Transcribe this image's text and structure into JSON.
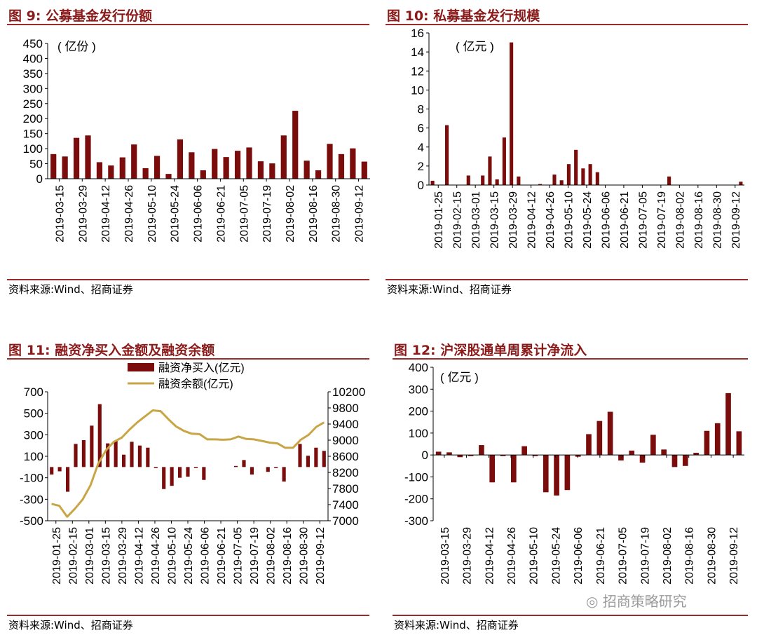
{
  "panels": {
    "p1": {
      "title": "图 9:  公募基金发行份额",
      "source": "资料来源:Wind、招商证券"
    },
    "p2": {
      "title": "图 10:  私募基金发行规模",
      "source": "资料来源:Wind、招商证券"
    },
    "p3": {
      "title": "图 11:  融资净买入金额及融资余额",
      "source": "资料来源:Wind、招商证券"
    },
    "p4": {
      "title": "图 12:  沪深股通单周累计净流入",
      "source": "资料来源:Wind、招商证券"
    }
  },
  "watermark": "招商策略研究",
  "colors": {
    "bar": "#7b0c0c",
    "line": "#c8a545",
    "rule": "#9b2a2a",
    "title": "#8b1a1a"
  },
  "chart_data": [
    {
      "id": "fig9",
      "type": "bar",
      "unit_label": "( 亿份 )",
      "ylim": [
        0,
        450
      ],
      "yticks": [
        0,
        50,
        100,
        150,
        200,
        250,
        300,
        350,
        400,
        450
      ],
      "xtick_labels": [
        "2019-03-15",
        "2019-03-29",
        "2019-04-12",
        "2019-04-26",
        "2019-05-10",
        "2019-05-24",
        "2019-06-06",
        "2019-06-21",
        "2019-07-05",
        "2019-07-19",
        "2019-08-02",
        "2019-08-16",
        "2019-08-30",
        "2019-09-12"
      ],
      "values": [
        82,
        74,
        136,
        144,
        55,
        44,
        71,
        114,
        35,
        76,
        16,
        131,
        88,
        28,
        99,
        72,
        93,
        104,
        58,
        51,
        144,
        226,
        60,
        28,
        116,
        82,
        101,
        57
      ]
    },
    {
      "id": "fig10",
      "type": "bar",
      "unit_label": "( 亿元 )",
      "ylim": [
        0,
        16
      ],
      "yticks": [
        0,
        2,
        4,
        6,
        8,
        10,
        12,
        14,
        16
      ],
      "xtick_labels": [
        "2019-01-25",
        "2019-02-15",
        "2019-03-01",
        "2019-03-15",
        "2019-03-29",
        "2019-04-12",
        "2019-04-26",
        "2019-05-10",
        "2019-05-24",
        "2019-06-06",
        "2019-06-21",
        "2019-07-05",
        "2019-07-19",
        "2019-08-02",
        "2019-08-16",
        "2019-08-30",
        "2019-09-12"
      ],
      "values": [
        0.45,
        0,
        6.3,
        0,
        0,
        1,
        0,
        1,
        3,
        0.6,
        5,
        15,
        0.9,
        0,
        0,
        0.1,
        0,
        1.1,
        0.5,
        2.2,
        3.7,
        1.75,
        2.2,
        1.35,
        0,
        0,
        0,
        0,
        0,
        0,
        0,
        0,
        0,
        0.9,
        0,
        0,
        0,
        0,
        0,
        0,
        0,
        0,
        0,
        0.35
      ]
    },
    {
      "id": "fig11",
      "type": "bar+line",
      "legend": [
        "融资净买入(亿元)",
        "融资余额(亿元)"
      ],
      "ylim_left": [
        -500,
        700
      ],
      "yticks_left": [
        -500,
        -300,
        -100,
        100,
        300,
        500,
        700
      ],
      "ylim_right": [
        7000,
        10200
      ],
      "yticks_right": [
        7000,
        7400,
        7800,
        8200,
        8600,
        9000,
        9400,
        9800,
        10200
      ],
      "xtick_labels": [
        "2019-01-25",
        "2019-02-15",
        "2019-03-01",
        "2019-03-15",
        "2019-03-29",
        "2019-04-12",
        "2019-04-26",
        "2019-05-10",
        "2019-05-24",
        "2019-06-06",
        "2019-06-21",
        "2019-07-05",
        "2019-07-19",
        "2019-08-02",
        "2019-08-16",
        "2019-08-30",
        "2019-09-12"
      ],
      "bar_values": [
        -70,
        -40,
        -230,
        215,
        250,
        385,
        585,
        220,
        245,
        115,
        235,
        200,
        180,
        -10,
        -205,
        -175,
        -100,
        -90,
        -10,
        -120,
        0,
        0,
        0,
        10,
        65,
        -70,
        0,
        -45,
        -10,
        -135,
        0,
        215,
        105,
        180,
        150
      ],
      "line_values": [
        7420,
        7370,
        7100,
        7300,
        7530,
        7880,
        8420,
        8750,
        8960,
        9060,
        9260,
        9440,
        9590,
        9740,
        9720,
        9520,
        9340,
        9230,
        9160,
        9150,
        9020,
        9020,
        9010,
        9020,
        9090,
        9030,
        9020,
        8980,
        8940,
        8920,
        8810,
        8810,
        9010,
        9130,
        9330,
        9440
      ]
    },
    {
      "id": "fig12",
      "type": "bar",
      "unit_label": "( 亿元 )",
      "ylim": [
        -300,
        400
      ],
      "yticks": [
        -300,
        -200,
        -100,
        0,
        100,
        200,
        300,
        400
      ],
      "xtick_labels": [
        "2019-03-15",
        "2019-03-29",
        "2019-04-12",
        "2019-04-26",
        "2019-05-10",
        "2019-05-24",
        "2019-06-06",
        "2019-06-21",
        "2019-07-05",
        "2019-07-19",
        "2019-08-02",
        "2019-08-16",
        "2019-08-30",
        "2019-09-12"
      ],
      "values": [
        15,
        12,
        -10,
        -5,
        45,
        -125,
        -5,
        -125,
        40,
        -5,
        -170,
        -185,
        -160,
        -8,
        95,
        155,
        197,
        -25,
        20,
        -35,
        92,
        25,
        -55,
        -50,
        10,
        110,
        145,
        282,
        108
      ]
    }
  ]
}
